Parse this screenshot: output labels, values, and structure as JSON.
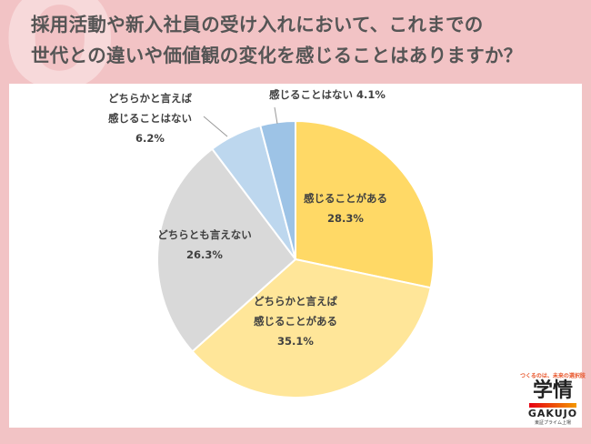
{
  "title_lines": [
    "採用活動や新入社員の受け入れにおいて、これまでの",
    "世代との違いや価値観の変化を感じることはありますか？"
  ],
  "chart_data": {
    "type": "pie",
    "title": "採用活動や新入社員の受け入れにおいて、これまでの世代との違いや価値観の変化を感じることはありますか？",
    "start": "12 o'clock, clockwise",
    "slices": [
      {
        "label": "感じることがある",
        "value": 28.3,
        "display": "28.3%",
        "color": "#ffd966"
      },
      {
        "label": "どちらかと言えば感じることがある",
        "value": 35.1,
        "display": "35.1%",
        "color": "#ffe699"
      },
      {
        "label": "どちらとも言えない",
        "value": 26.3,
        "display": "26.3%",
        "color": "#d9d9d9"
      },
      {
        "label": "どちらかと言えば感じることはない",
        "value": 6.2,
        "display": "6.2%",
        "color": "#bdd7ee"
      },
      {
        "label": "感じることはない",
        "value": 4.1,
        "display": "4.1%",
        "color": "#9dc3e6"
      }
    ],
    "label_lines": [
      [
        "感じることがある",
        "28.3%"
      ],
      [
        "どちらかと言えば",
        "感じることがある",
        "35.1%"
      ],
      [
        "どちらとも言えない",
        "26.3%"
      ],
      [
        "どちらかと言えば",
        "感じることはない",
        "6.2%"
      ],
      [
        "感じることはない 4.1%"
      ]
    ]
  },
  "logo": {
    "tagline": "つくるのは、未来の選択肢",
    "name": "学情",
    "name_en": "GAKUJO",
    "sub": "東証プライム上場"
  }
}
